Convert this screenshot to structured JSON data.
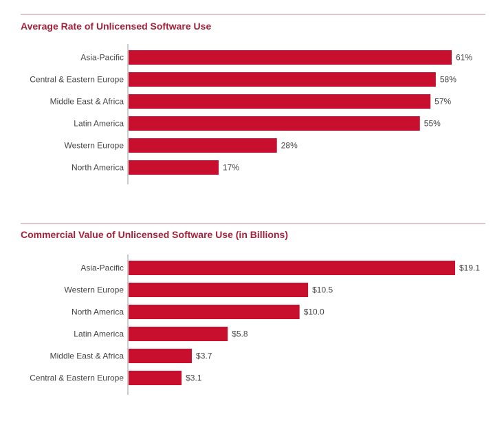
{
  "chart_data": [
    {
      "type": "bar",
      "orientation": "horizontal",
      "title": "Average Rate of Unlicensed Software Use",
      "categories": [
        "Asia-Pacific",
        "Central & Eastern Europe",
        "Middle East & Africa",
        "Latin America",
        "Western Europe",
        "North America"
      ],
      "values": [
        61,
        58,
        57,
        55,
        28,
        17
      ],
      "data_labels": [
        "61%",
        "58%",
        "57%",
        "55%",
        "28%",
        "17%"
      ],
      "unit": "%",
      "xlim": [
        0,
        61
      ],
      "grid": false,
      "color": "#c8102e"
    },
    {
      "type": "bar",
      "orientation": "horizontal",
      "title": "Commercial Value of Unlicensed Software Use (in Billions)",
      "categories": [
        "Asia-Pacific",
        "Western Europe",
        "North America",
        "Latin America",
        "Middle East & Africa",
        "Central & Eastern Europe"
      ],
      "values": [
        19.1,
        10.5,
        10.0,
        5.8,
        3.7,
        3.1
      ],
      "data_labels": [
        "$19.1",
        "$10.5",
        "$10.0",
        "$5.8",
        "$3.7",
        "$3.1"
      ],
      "unit": "$ billions",
      "xlim": [
        0,
        19.1
      ],
      "grid": false,
      "color": "#c8102e"
    }
  ]
}
